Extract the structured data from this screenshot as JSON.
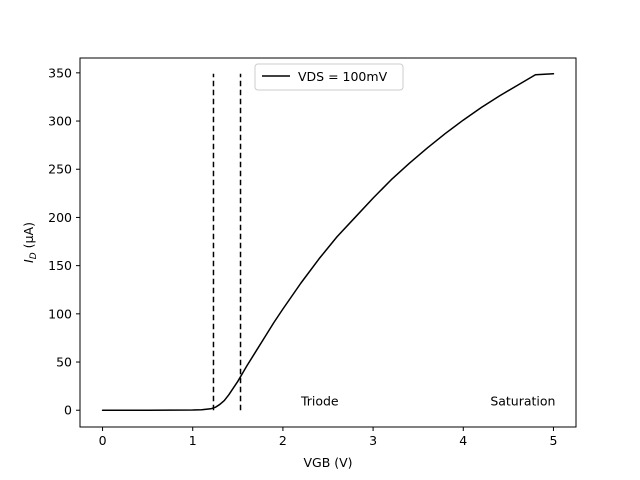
{
  "chart_data": {
    "type": "line",
    "title": "",
    "xlabel": "VGB (V)",
    "ylabel_main": "I",
    "ylabel_sub": "D",
    "ylabel_unit": "(μA)",
    "xlim": [
      -0.25,
      5.25
    ],
    "ylim": [
      -17.4,
      365.4
    ],
    "xticks": [
      0,
      1,
      2,
      3,
      4,
      5
    ],
    "yticks": [
      0,
      50,
      100,
      150,
      200,
      250,
      300,
      350
    ],
    "grid": false,
    "legend_position": "top-center",
    "series": [
      {
        "name": "VDS = 100mV",
        "color": "#000000",
        "style": "solid",
        "x": [
          0,
          0.5,
          1.0,
          1.1,
          1.2,
          1.25,
          1.3,
          1.35,
          1.4,
          1.45,
          1.5,
          1.55,
          1.6,
          1.7,
          1.8,
          1.9,
          2.0,
          2.2,
          2.4,
          2.6,
          2.8,
          3.0,
          3.2,
          3.4,
          3.6,
          3.8,
          4.0,
          4.2,
          4.4,
          4.6,
          4.8,
          5.0
        ],
        "y": [
          0,
          0,
          0.2,
          0.5,
          1.5,
          3,
          6,
          10,
          16,
          23,
          30,
          38,
          46,
          61,
          76,
          91,
          105,
          132,
          157,
          180,
          200,
          220,
          239,
          256,
          272,
          287,
          301,
          314,
          326,
          337,
          348,
          349
        ]
      }
    ],
    "vlines": [
      {
        "x": 1.23,
        "ymin": 0,
        "ymax": 349,
        "style": "dashed",
        "color": "#000000"
      },
      {
        "x": 1.53,
        "ymin": 0,
        "ymax": 349,
        "style": "dashed",
        "color": "#000000"
      }
    ],
    "annotations": [
      {
        "text": "Triode",
        "x": 2.2,
        "y": 5
      },
      {
        "text": "Saturation",
        "x": 4.3,
        "y": 5
      }
    ]
  }
}
